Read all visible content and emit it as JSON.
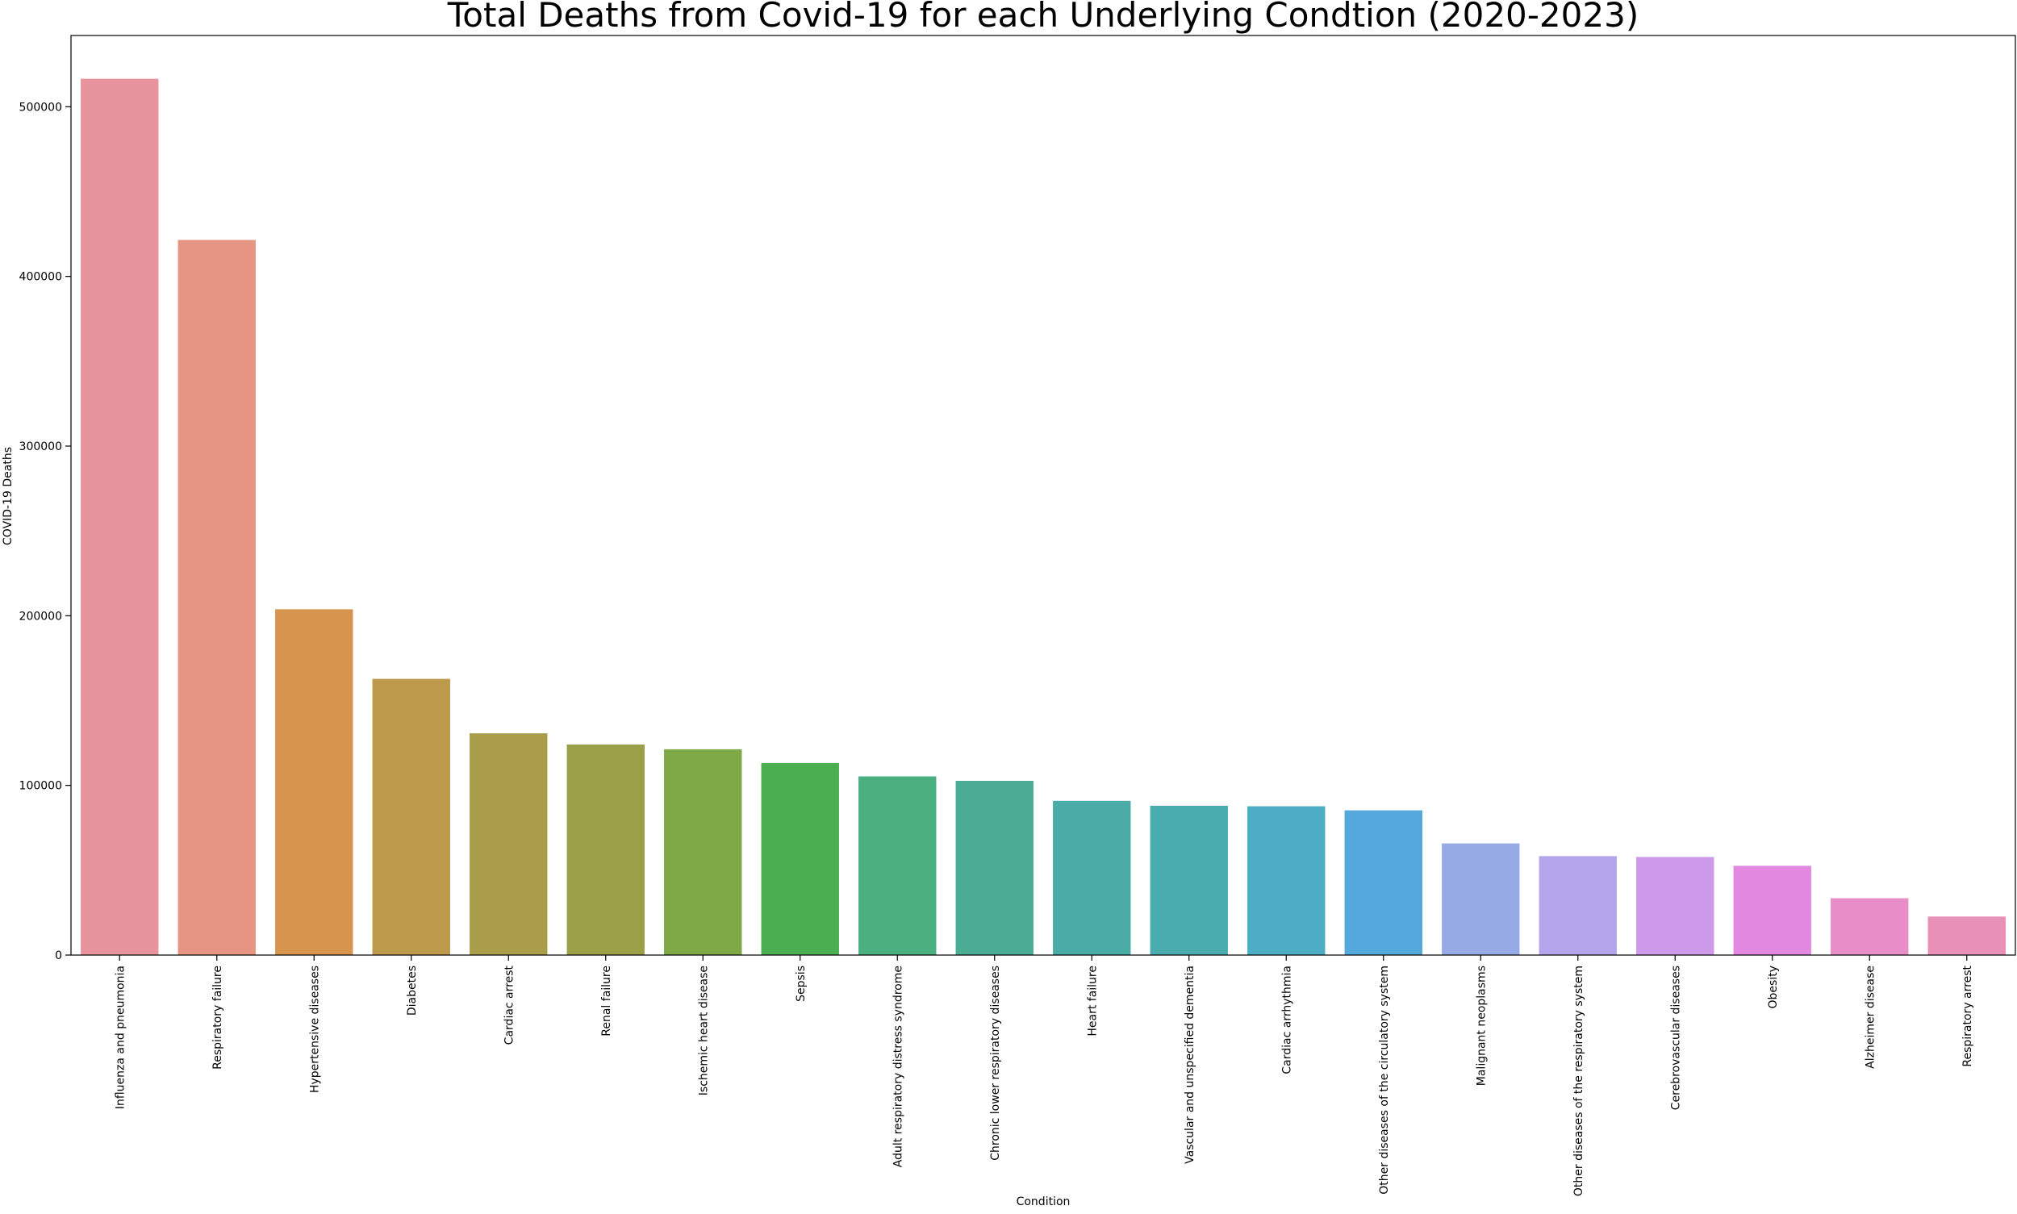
{
  "chart_data": {
    "type": "bar",
    "title": "Total Deaths from Covid-19 for each Underlying Condtion (2020-2023)",
    "xlabel": "Condition",
    "ylabel": "COVID-19 Deaths",
    "ylim": [
      0,
      542000
    ],
    "yticks": [
      0,
      100000,
      200000,
      300000,
      400000,
      500000
    ],
    "ytick_labels": [
      "0",
      "100000",
      "200000",
      "300000",
      "400000",
      "500000"
    ],
    "grid": false,
    "legend": "none",
    "categories": [
      "Influenza and pneumonia",
      "Respiratory failure",
      "Hypertensive diseases",
      "Diabetes",
      "Cardiac arrest",
      "Renal failure",
      "Ischemic heart disease",
      "Sepsis",
      "Adult respiratory distress syndrome",
      "Chronic lower respiratory diseases",
      "Heart failure",
      "Vascular and unspecified dementia",
      "Cardiac arrhythmia",
      "Other diseases of the circulatory system",
      "Malignant neoplasms",
      "Other diseases of the respiratory system",
      "Cerebrovascular diseases",
      "Obesity",
      "Alzheimer disease",
      "Respiratory arrest"
    ],
    "values": [
      516500,
      421500,
      203800,
      162800,
      130700,
      124100,
      121300,
      113200,
      105300,
      102700,
      90900,
      88000,
      87700,
      85300,
      65800,
      58300,
      57800,
      52600,
      33500,
      22700
    ],
    "colors": [
      "#e8949f",
      "#e69582",
      "#d7944e",
      "#bd9a4b",
      "#aa9d4a",
      "#9a9f48",
      "#7fa847",
      "#4bae50",
      "#4bb07f",
      "#4bae94",
      "#4aaba7",
      "#4aacae",
      "#4cadc4",
      "#54a8dc",
      "#96abe6",
      "#b4a4ec",
      "#cd99e8",
      "#e288e1",
      "#e98dc8",
      "#e890b7"
    ]
  }
}
